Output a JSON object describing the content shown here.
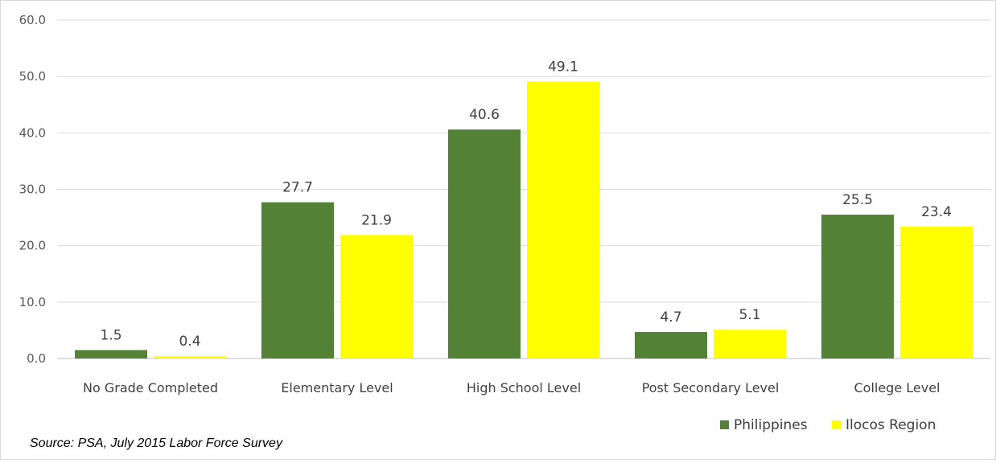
{
  "chart_data": {
    "type": "bar",
    "title": "",
    "xlabel": "",
    "ylabel": "",
    "categories": [
      "No Grade Completed",
      "Elementary Level",
      "High School Level",
      "Post Secondary Level",
      "College Level"
    ],
    "series": [
      {
        "name": "Philippines",
        "color": "#538135",
        "values": [
          1.5,
          27.7,
          40.6,
          4.7,
          25.5
        ]
      },
      {
        "name": "Ilocos Region",
        "color": "#ffff00",
        "values": [
          0.4,
          21.9,
          49.1,
          5.1,
          23.4
        ]
      }
    ],
    "ylim": [
      0,
      60
    ],
    "yticks": [
      "0.0",
      "10.0",
      "20.0",
      "30.0",
      "40.0",
      "50.0",
      "60.0"
    ],
    "grid": true,
    "legend_position": "bottom-right",
    "value_format": "one-decimal"
  },
  "source_note": "Source: PSA, July 2015 Labor Force Survey"
}
